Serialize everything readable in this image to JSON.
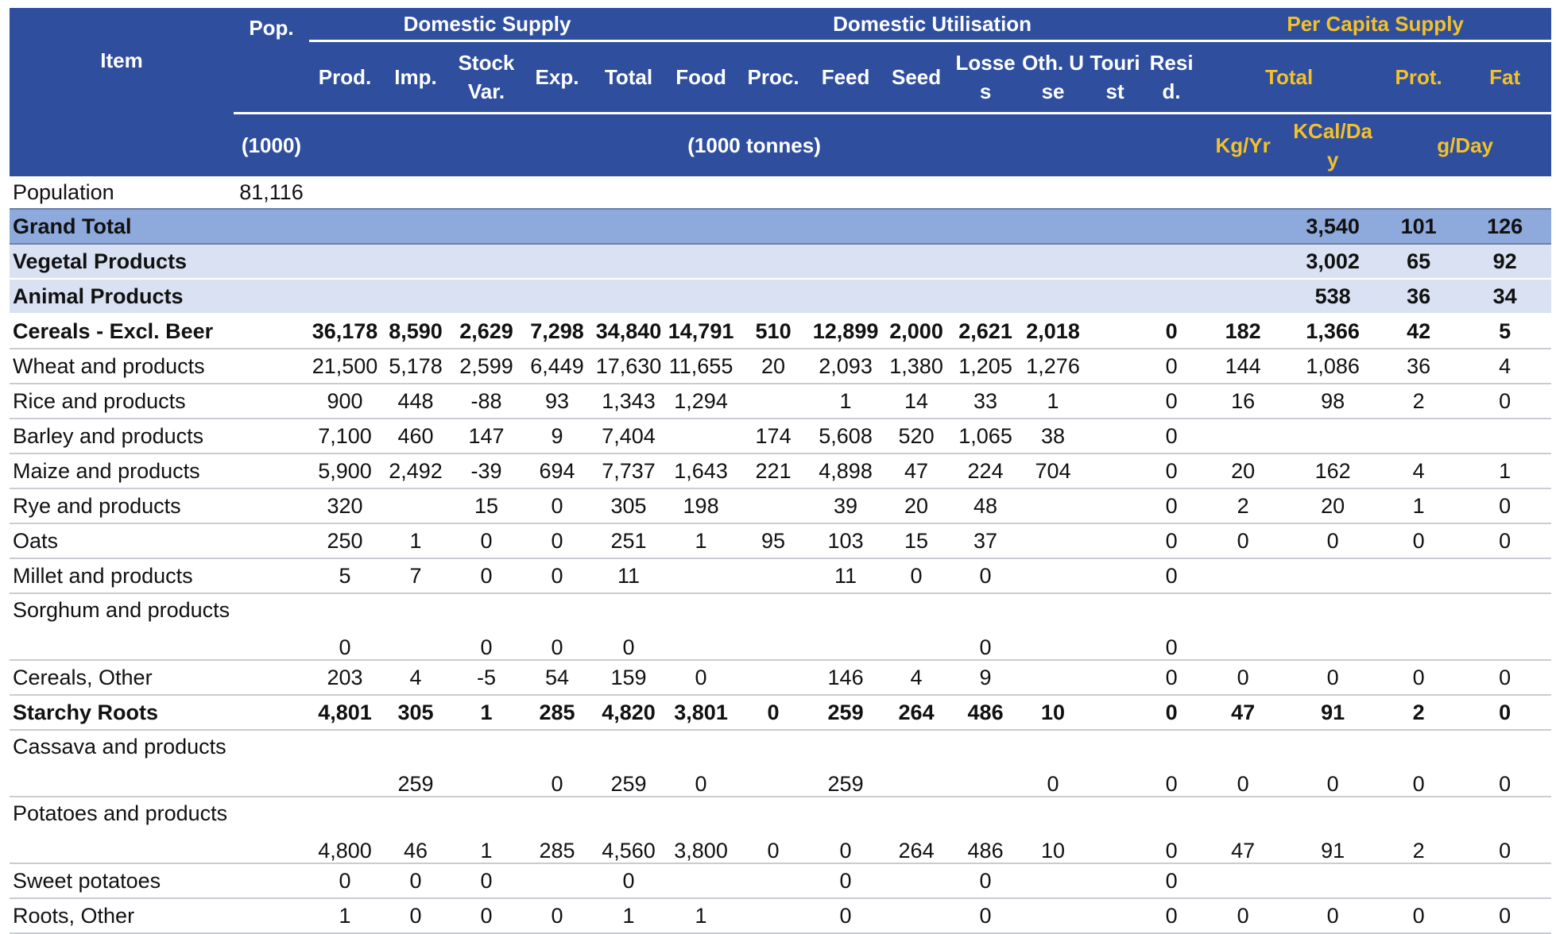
{
  "header": {
    "item": "Item",
    "pop": "Pop.",
    "domestic_supply": "Domestic Supply",
    "domestic_utilisation": "Domestic Utilisation",
    "per_capita_supply": "Per Capita Supply",
    "cols": {
      "prod": "Prod.",
      "imp": "Imp.",
      "stock_var": "Stock Var.",
      "exp": "Exp.",
      "total": "Total",
      "food": "Food",
      "proc": "Proc.",
      "feed": "Feed",
      "seed": "Seed",
      "losses": "Losses",
      "oth_use": "Oth. Use",
      "tourist": "Tourist",
      "resid": "Resid.",
      "pc_total": "Total",
      "prot": "Prot.",
      "fat": "Fat"
    },
    "units": {
      "pop": "(1000)",
      "tonnes": "(1000 tonnes)",
      "kg_yr": "Kg/Yr",
      "kcal": "KCal/Day",
      "g_day": "g/Day"
    }
  },
  "rows": [
    {
      "type": "pop",
      "item": "Population",
      "pop": "81,116",
      "v": [
        "",
        "",
        "",
        "",
        "",
        "",
        "",
        "",
        "",
        "",
        "",
        "",
        "",
        "",
        "",
        "",
        "",
        ""
      ]
    },
    {
      "type": "grand",
      "item": "Grand Total",
      "v": [
        "",
        "",
        "",
        "",
        "",
        "",
        "",
        "",
        "",
        "",
        "",
        "",
        "",
        "",
        "3,540",
        "101",
        "126"
      ]
    },
    {
      "type": "sub",
      "item": "Vegetal Products",
      "v": [
        "",
        "",
        "",
        "",
        "",
        "",
        "",
        "",
        "",
        "",
        "",
        "",
        "",
        "",
        "3,002",
        "65",
        "92"
      ]
    },
    {
      "type": "sub",
      "item": "Animal Products",
      "v": [
        "",
        "",
        "",
        "",
        "",
        "",
        "",
        "",
        "",
        "",
        "",
        "",
        "",
        "",
        "538",
        "36",
        "34"
      ]
    },
    {
      "type": "group",
      "item": "Cereals - Excl. Beer",
      "v": [
        "36,178",
        "8,590",
        "2,629",
        "7,298",
        "34,840",
        "14,791",
        "510",
        "12,899",
        "2,000",
        "2,621",
        "2,018",
        "",
        "0",
        "182",
        "1,366",
        "42",
        "5"
      ]
    },
    {
      "type": "row",
      "item": "Wheat and products",
      "v": [
        "21,500",
        "5,178",
        "2,599",
        "6,449",
        "17,630",
        "11,655",
        "20",
        "2,093",
        "1,380",
        "1,205",
        "1,276",
        "",
        "0",
        "144",
        "1,086",
        "36",
        "4"
      ]
    },
    {
      "type": "row",
      "item": "Rice and products",
      "v": [
        "900",
        "448",
        "-88",
        "93",
        "1,343",
        "1,294",
        "",
        "1",
        "14",
        "33",
        "1",
        "",
        "0",
        "16",
        "98",
        "2",
        "0"
      ]
    },
    {
      "type": "row",
      "item": "Barley and products",
      "v": [
        "7,100",
        "460",
        "147",
        "9",
        "7,404",
        "",
        "174",
        "5,608",
        "520",
        "1,065",
        "38",
        "",
        "0",
        "",
        "",
        "",
        ""
      ]
    },
    {
      "type": "row",
      "item": "Maize and products",
      "v": [
        "5,900",
        "2,492",
        "-39",
        "694",
        "7,737",
        "1,643",
        "221",
        "4,898",
        "47",
        "224",
        "704",
        "",
        "0",
        "20",
        "162",
        "4",
        "1"
      ]
    },
    {
      "type": "row",
      "item": "Rye and products",
      "v": [
        "320",
        "",
        "15",
        "0",
        "305",
        "198",
        "",
        "39",
        "20",
        "48",
        "",
        "",
        "0",
        "2",
        "20",
        "1",
        "0"
      ]
    },
    {
      "type": "row",
      "item": "Oats",
      "v": [
        "250",
        "1",
        "0",
        "0",
        "251",
        "1",
        "95",
        "103",
        "15",
        "37",
        "",
        "",
        "0",
        "0",
        "0",
        "0",
        "0"
      ]
    },
    {
      "type": "row",
      "item": "Millet and products",
      "v": [
        "5",
        "7",
        "0",
        "0",
        "11",
        "",
        "",
        "11",
        "0",
        "0",
        "",
        "",
        "0",
        "",
        "",
        "",
        ""
      ]
    },
    {
      "type": "tall",
      "item": "Sorghum and products",
      "v": [
        "0",
        "",
        "0",
        "0",
        "0",
        "",
        "",
        "",
        "",
        "0",
        "",
        "",
        "0",
        "",
        "",
        "",
        ""
      ]
    },
    {
      "type": "row",
      "item": "Cereals, Other",
      "v": [
        "203",
        "4",
        "-5",
        "54",
        "159",
        "0",
        "",
        "146",
        "4",
        "9",
        "",
        "",
        "0",
        "0",
        "0",
        "0",
        "0"
      ]
    },
    {
      "type": "group",
      "item": "Starchy Roots",
      "v": [
        "4,801",
        "305",
        "1",
        "285",
        "4,820",
        "3,801",
        "0",
        "259",
        "264",
        "486",
        "10",
        "",
        "0",
        "47",
        "91",
        "2",
        "0"
      ]
    },
    {
      "type": "tall",
      "item": "Cassava and products",
      "v": [
        "",
        "259",
        "",
        "0",
        "259",
        "0",
        "",
        "259",
        "",
        "",
        "0",
        "",
        "0",
        "0",
        "0",
        "0",
        "0"
      ]
    },
    {
      "type": "tall",
      "item": "Potatoes and products",
      "v": [
        "4,800",
        "46",
        "1",
        "285",
        "4,560",
        "3,800",
        "0",
        "0",
        "264",
        "486",
        "10",
        "",
        "0",
        "47",
        "91",
        "2",
        "0"
      ]
    },
    {
      "type": "row",
      "item": "Sweet potatoes",
      "v": [
        "0",
        "0",
        "0",
        "",
        "0",
        "",
        "",
        "0",
        "",
        "0",
        "",
        "",
        "0",
        "",
        "",
        "",
        ""
      ]
    },
    {
      "type": "row",
      "item": "Roots, Other",
      "v": [
        "1",
        "0",
        "0",
        "0",
        "1",
        "1",
        "",
        "0",
        "",
        "0",
        "",
        "",
        "0",
        "0",
        "0",
        "0",
        "0"
      ]
    }
  ]
}
